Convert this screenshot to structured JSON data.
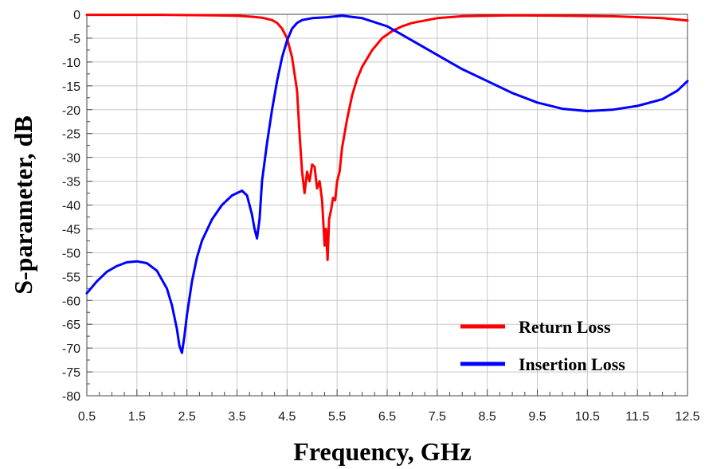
{
  "chart_data": {
    "type": "line",
    "xlabel": "Frequency, GHz",
    "ylabel": "S-parameter, dB",
    "xlim": [
      0.5,
      12.5
    ],
    "ylim": [
      -80,
      0
    ],
    "x_ticks": [
      "0.5",
      "1.5",
      "2.5",
      "3.5",
      "4.5",
      "5.5",
      "6.5",
      "7.5",
      "8.5",
      "9.5",
      "10.5",
      "11.5",
      "12.5"
    ],
    "y_ticks": [
      "0",
      "-5",
      "-10",
      "-15",
      "-20",
      "-25",
      "-30",
      "-35",
      "-40",
      "-45",
      "-50",
      "-55",
      "-60",
      "-65",
      "-70",
      "-75",
      "-80"
    ],
    "grid": true,
    "legend_position": "bottom-right",
    "series": [
      {
        "name": "Return Loss",
        "color": "#ff0000",
        "x": [
          0.5,
          2.0,
          3.0,
          3.5,
          3.8,
          4.0,
          4.2,
          4.3,
          4.4,
          4.5,
          4.6,
          4.7,
          4.75,
          4.8,
          4.85,
          4.9,
          4.95,
          5.0,
          5.05,
          5.1,
          5.15,
          5.2,
          5.25,
          5.28,
          5.31,
          5.34,
          5.38,
          5.42,
          5.46,
          5.5,
          5.55,
          5.6,
          5.7,
          5.8,
          5.9,
          6.0,
          6.2,
          6.4,
          6.6,
          6.8,
          7.0,
          7.5,
          8.0,
          9.0,
          10.0,
          11.0,
          12.0,
          12.5
        ],
        "y": [
          -0.1,
          -0.1,
          -0.2,
          -0.3,
          -0.5,
          -0.7,
          -1.2,
          -1.8,
          -3.0,
          -5.0,
          -9.0,
          -16.0,
          -25.0,
          -33.0,
          -37.5,
          -33.0,
          -35.0,
          -31.5,
          -32.0,
          -36.5,
          -35.0,
          -39.0,
          -48.5,
          -45.0,
          -51.5,
          -43.0,
          -41.0,
          -38.5,
          -39.0,
          -35.0,
          -33.0,
          -28.0,
          -22.0,
          -17.0,
          -13.5,
          -11.0,
          -7.5,
          -5.0,
          -3.5,
          -2.5,
          -1.8,
          -0.8,
          -0.4,
          -0.2,
          -0.3,
          -0.4,
          -0.8,
          -1.3
        ]
      },
      {
        "name": "Insertion Loss",
        "color": "#0000ff",
        "x": [
          0.5,
          0.7,
          0.9,
          1.1,
          1.3,
          1.5,
          1.7,
          1.9,
          2.1,
          2.2,
          2.3,
          2.35,
          2.4,
          2.45,
          2.5,
          2.6,
          2.7,
          2.8,
          3.0,
          3.2,
          3.4,
          3.6,
          3.7,
          3.8,
          3.85,
          3.9,
          3.95,
          4.0,
          4.1,
          4.2,
          4.3,
          4.4,
          4.5,
          4.6,
          4.7,
          4.8,
          5.0,
          5.3,
          5.6,
          6.0,
          6.5,
          7.0,
          7.5,
          8.0,
          8.5,
          9.0,
          9.5,
          10.0,
          10.5,
          11.0,
          11.5,
          12.0,
          12.3,
          12.5
        ],
        "y": [
          -58.5,
          -56.0,
          -54.0,
          -52.8,
          -52.0,
          -51.8,
          -52.2,
          -53.8,
          -57.5,
          -61.0,
          -66.0,
          -69.5,
          -71.0,
          -67.5,
          -63.0,
          -56.0,
          -51.0,
          -47.5,
          -43.0,
          -40.0,
          -38.0,
          -37.0,
          -38.0,
          -42.0,
          -45.0,
          -47.0,
          -43.0,
          -35.0,
          -27.0,
          -20.0,
          -14.0,
          -9.0,
          -5.5,
          -3.0,
          -1.8,
          -1.2,
          -0.8,
          -0.6,
          -0.3,
          -0.8,
          -2.5,
          -5.5,
          -8.5,
          -11.5,
          -14.0,
          -16.5,
          -18.5,
          -19.8,
          -20.3,
          -20.0,
          -19.2,
          -17.8,
          -16.0,
          -14.0
        ]
      }
    ]
  }
}
